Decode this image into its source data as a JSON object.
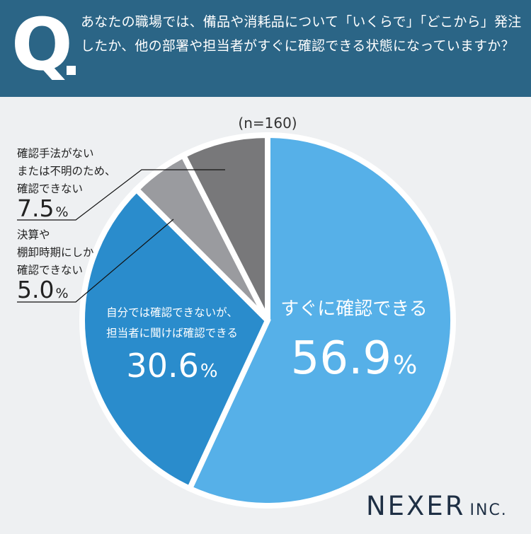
{
  "header": {
    "q_label": "Q",
    "question": "あなたの職場では、備品や消耗品について「いくらで」「どこから」発注したか、他の部署や担当者がすぐに確認できる状態になっていますか？"
  },
  "chart_data": {
    "type": "pie",
    "sample_size": "(n=160)",
    "unit": "%",
    "slices": [
      {
        "label_lines": [
          "すぐに確認できる"
        ],
        "value": 56.9,
        "value_text": "56.9",
        "color": "#56b0e8"
      },
      {
        "label_lines": [
          "自分では確認できないが、",
          "担当者に聞けば確認できる"
        ],
        "value": 30.6,
        "value_text": "30.6",
        "color": "#2a8ccc"
      },
      {
        "label_lines": [
          "決算や",
          "棚卸時期にしか",
          "確認できない"
        ],
        "value": 5.0,
        "value_text": "5.0",
        "color": "#9a9b9f"
      },
      {
        "label_lines": [
          "確認手法がない",
          "または不明のため、",
          "確認できない"
        ],
        "value": 7.5,
        "value_text": "7.5",
        "color": "#78787a"
      }
    ]
  },
  "footer": {
    "logo_main": "NEXER",
    "logo_sub": "INC."
  }
}
